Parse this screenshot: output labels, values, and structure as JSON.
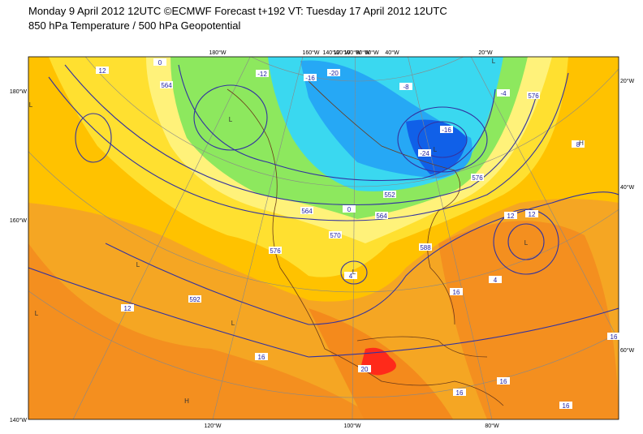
{
  "header": {
    "line1": "Monday 9 April 2012 12UTC ©ECMWF Forecast t+192 VT: Tuesday 17 April 2012 12UTC",
    "line2": "850 hPa Temperature / 500 hPa Geopotential"
  },
  "map": {
    "top_labels": [
      "180°W",
      "160°W",
      "140°W",
      "120°W",
      "100°W",
      "80°W",
      "60°W",
      "40°W",
      "20°W"
    ],
    "left_labels": [
      "180°W",
      "160°W",
      "140°W"
    ],
    "right_labels": [
      "20°W",
      "40°W",
      "60°W"
    ],
    "bottom_labels": [
      "120°W",
      "100°W",
      "80°W"
    ],
    "contour_labels": [
      "12",
      "0",
      "564",
      "-12",
      "-16",
      "-20",
      "-16",
      "-24",
      "-8",
      "-4",
      "576",
      "8",
      "576",
      "552",
      "564",
      "564",
      "0",
      "576",
      "570",
      "4",
      "12",
      "12",
      "4",
      "588",
      "16",
      "592",
      "12",
      "16",
      "20",
      "16",
      "16",
      "16",
      "16"
    ],
    "centers": [
      "L",
      "L",
      "L",
      "L",
      "L",
      "L",
      "L",
      "L",
      "L",
      "H",
      "H"
    ]
  }
}
